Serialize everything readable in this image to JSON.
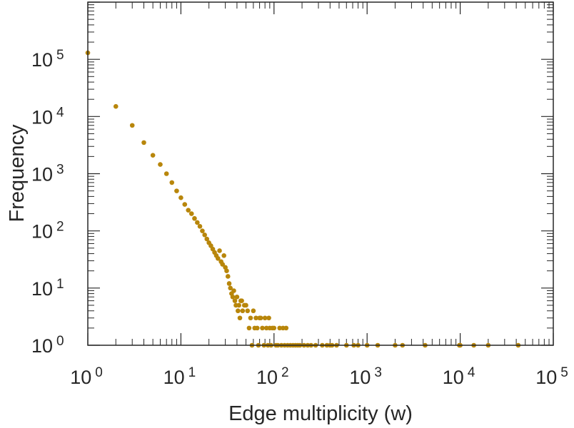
{
  "chart_data": {
    "type": "scatter",
    "title": "",
    "xlabel": "Edge multiplicity (w)",
    "ylabel": "Frequency",
    "x_scale": "log",
    "y_scale": "log",
    "xlim": [
      1,
      100000
    ],
    "ylim": [
      1,
      1000000
    ],
    "x_ticks": [
      {
        "base": "10",
        "exp": "0",
        "value": 1
      },
      {
        "base": "10",
        "exp": "1",
        "value": 10
      },
      {
        "base": "10",
        "exp": "2",
        "value": 100
      },
      {
        "base": "10",
        "exp": "3",
        "value": 1000
      },
      {
        "base": "10",
        "exp": "4",
        "value": 10000
      },
      {
        "base": "10",
        "exp": "5",
        "value": 100000
      }
    ],
    "y_ticks": [
      {
        "base": "10",
        "exp": "0",
        "value": 1
      },
      {
        "base": "10",
        "exp": "1",
        "value": 10
      },
      {
        "base": "10",
        "exp": "2",
        "value": 100
      },
      {
        "base": "10",
        "exp": "3",
        "value": 1000
      },
      {
        "base": "10",
        "exp": "4",
        "value": 10000
      },
      {
        "base": "10",
        "exp": "5",
        "value": 100000
      }
    ],
    "grid": false,
    "marker_color": "#b8860b",
    "points": [
      [
        1,
        130000
      ],
      [
        2,
        15000
      ],
      [
        3,
        7000
      ],
      [
        4,
        3500
      ],
      [
        5,
        2100
      ],
      [
        6,
        1450
      ],
      [
        7,
        1000
      ],
      [
        8,
        700
      ],
      [
        9,
        500
      ],
      [
        10,
        380
      ],
      [
        11,
        290
      ],
      [
        12,
        230
      ],
      [
        13,
        200
      ],
      [
        14,
        165
      ],
      [
        15,
        140
      ],
      [
        16,
        120
      ],
      [
        17,
        100
      ],
      [
        18,
        85
      ],
      [
        19,
        72
      ],
      [
        20,
        62
      ],
      [
        21,
        55
      ],
      [
        22,
        48
      ],
      [
        23,
        42
      ],
      [
        24,
        37
      ],
      [
        25,
        33
      ],
      [
        26,
        45
      ],
      [
        27,
        29
      ],
      [
        28,
        26
      ],
      [
        29,
        37
      ],
      [
        30,
        23
      ],
      [
        31,
        20
      ],
      [
        32,
        16
      ],
      [
        33,
        12
      ],
      [
        34,
        10
      ],
      [
        35,
        8
      ],
      [
        36,
        7
      ],
      [
        37,
        9
      ],
      [
        38,
        6
      ],
      [
        39,
        5
      ],
      [
        40,
        7
      ],
      [
        41,
        4
      ],
      [
        42,
        5
      ],
      [
        43,
        3
      ],
      [
        44,
        6
      ],
      [
        45,
        6
      ],
      [
        46,
        4
      ],
      [
        48,
        5
      ],
      [
        50,
        5
      ],
      [
        52,
        4
      ],
      [
        54,
        2
      ],
      [
        56,
        3
      ],
      [
        58,
        1
      ],
      [
        60,
        4
      ],
      [
        62,
        2
      ],
      [
        64,
        3
      ],
      [
        66,
        2
      ],
      [
        68,
        1
      ],
      [
        70,
        3
      ],
      [
        72,
        3
      ],
      [
        75,
        2
      ],
      [
        78,
        1
      ],
      [
        80,
        3
      ],
      [
        83,
        2
      ],
      [
        86,
        1
      ],
      [
        88,
        3
      ],
      [
        90,
        2
      ],
      [
        93,
        1
      ],
      [
        96,
        2
      ],
      [
        100,
        2
      ],
      [
        105,
        1
      ],
      [
        110,
        1
      ],
      [
        115,
        2
      ],
      [
        120,
        1
      ],
      [
        125,
        2
      ],
      [
        130,
        1
      ],
      [
        135,
        2
      ],
      [
        140,
        1
      ],
      [
        150,
        1
      ],
      [
        160,
        1
      ],
      [
        170,
        1
      ],
      [
        180,
        1
      ],
      [
        190,
        1
      ],
      [
        210,
        1
      ],
      [
        230,
        1
      ],
      [
        250,
        1
      ],
      [
        280,
        1
      ],
      [
        330,
        1
      ],
      [
        370,
        1
      ],
      [
        400,
        1
      ],
      [
        420,
        1
      ],
      [
        470,
        1
      ],
      [
        600,
        1
      ],
      [
        720,
        1
      ],
      [
        800,
        1
      ],
      [
        1000,
        1
      ],
      [
        1300,
        1
      ],
      [
        2000,
        1
      ],
      [
        2400,
        1
      ],
      [
        4200,
        1
      ],
      [
        9800,
        1
      ],
      [
        10000,
        1
      ],
      [
        14000,
        1
      ],
      [
        20000,
        1
      ],
      [
        42000,
        1
      ]
    ]
  }
}
